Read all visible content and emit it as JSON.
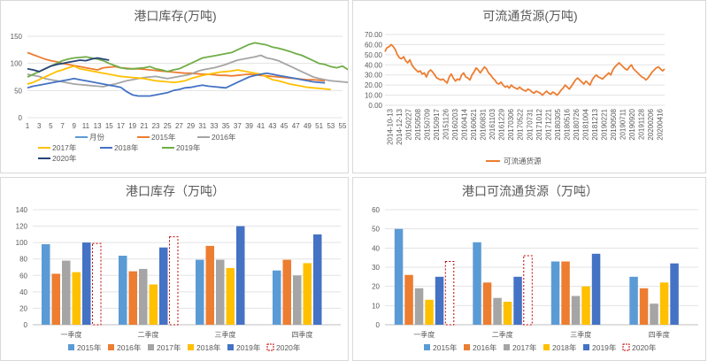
{
  "chart_data": [
    {
      "type": "line",
      "title": "港口库存(万吨)",
      "xlabel": "",
      "ylabel": "",
      "ylim": [
        0,
        150
      ],
      "yticks": [
        0,
        50,
        100,
        150
      ],
      "xticks": [
        1,
        3,
        5,
        7,
        9,
        11,
        13,
        15,
        17,
        19,
        21,
        23,
        25,
        27,
        29,
        31,
        33,
        35,
        37,
        39,
        41,
        43,
        45,
        47,
        49,
        51,
        53,
        55
      ],
      "xlim": [
        1,
        55
      ],
      "grid": true,
      "legend": "bottom",
      "legend_entries": [
        "月份",
        "2015年",
        "2016年",
        "2017年",
        "2018年",
        "2019年",
        "2020年"
      ],
      "series": [
        {
          "name": "2015年",
          "color": "#ed7d31",
          "start": 1,
          "values": [
            120,
            116,
            112,
            108,
            105,
            103,
            100,
            98,
            96,
            94,
            92,
            90,
            88,
            92,
            93,
            94,
            92,
            91,
            90,
            90,
            89,
            88,
            87,
            86,
            85,
            84,
            83,
            82,
            82,
            81,
            80,
            80,
            79,
            78,
            78,
            77,
            78,
            79,
            80,
            79,
            78,
            77,
            76,
            75,
            74,
            73,
            72,
            71,
            70,
            70,
            69,
            68
          ]
        },
        {
          "name": "2016年",
          "color": "#a5a5a5",
          "start": 1,
          "values": [
            80,
            78,
            76,
            72,
            70,
            68,
            66,
            64,
            62,
            61,
            60,
            59,
            58,
            57,
            60,
            62,
            65,
            68,
            70,
            72,
            74,
            75,
            76,
            74,
            72,
            74,
            76,
            78,
            80,
            85,
            88,
            90,
            92,
            95,
            98,
            102,
            106,
            108,
            110,
            112,
            115,
            110,
            108,
            105,
            100,
            95,
            90,
            85,
            80,
            75,
            72,
            70,
            68,
            67,
            66,
            65,
            63
          ]
        },
        {
          "name": "2017年",
          "color": "#ffc000",
          "start": 1,
          "values": [
            62,
            65,
            70,
            75,
            80,
            85,
            88,
            92,
            95,
            90,
            88,
            86,
            84,
            82,
            80,
            78,
            76,
            75,
            74,
            73,
            72,
            70,
            68,
            67,
            66,
            65,
            66,
            68,
            72,
            75,
            78,
            80,
            82,
            84,
            85,
            86,
            88,
            86,
            84,
            82,
            80,
            75,
            70,
            68,
            65,
            62,
            60,
            58,
            56,
            55,
            54,
            53,
            52
          ]
        },
        {
          "name": "2018年",
          "color": "#4472c4",
          "start": 1,
          "values": [
            55,
            58,
            60,
            62,
            64,
            66,
            68,
            70,
            72,
            70,
            68,
            66,
            64,
            62,
            60,
            58,
            56,
            48,
            42,
            40,
            40,
            40,
            42,
            44,
            46,
            50,
            52,
            55,
            56,
            58,
            60,
            58,
            57,
            56,
            55,
            60,
            65,
            70,
            75,
            78,
            80,
            82,
            80,
            78,
            76,
            74,
            72,
            70,
            68,
            66,
            65,
            64
          ]
        },
        {
          "name": "2019年",
          "color": "#70ad47",
          "start": 1,
          "values": [
            75,
            80,
            85,
            90,
            95,
            100,
            105,
            108,
            110,
            111,
            112,
            110,
            108,
            105,
            100,
            96,
            92,
            90,
            90,
            91,
            92,
            94,
            90,
            88,
            85,
            88,
            90,
            95,
            100,
            105,
            110,
            112,
            114,
            116,
            118,
            120,
            125,
            130,
            135,
            138,
            136,
            134,
            130,
            128,
            125,
            122,
            118,
            115,
            110,
            105,
            100,
            98,
            94,
            92,
            95,
            88
          ]
        },
        {
          "name": "2020年",
          "color": "#264478",
          "start": 1,
          "values": [
            90,
            88,
            85,
            90,
            95,
            98,
            100,
            102,
            104,
            106,
            105,
            108,
            110,
            108,
            106
          ]
        }
      ]
    },
    {
      "type": "line",
      "title": "可流通货源(万吨)",
      "xlabel": "",
      "ylabel": "",
      "ylim": [
        0,
        70
      ],
      "yticks": [
        "0.00",
        "10.00",
        "20.00",
        "30.00",
        "40.00",
        "50.00",
        "60.00",
        "70.00"
      ],
      "xticks": [
        "2014-10-13",
        "2014-12-13",
        "20150227",
        "20150508",
        "20150709",
        "20150917",
        "20151126",
        "20160203",
        "20160414",
        "20160621",
        "20160831",
        "20161103",
        "20161229",
        "20170306",
        "20170522",
        "20170731",
        "20171012",
        "20171221",
        "20180305",
        "20180516",
        "20180726",
        "20181004",
        "20181213",
        "20190221",
        "20190508",
        "20190711",
        "20190920",
        "20191128",
        "20200206",
        "20200416"
      ],
      "grid": true,
      "legend": "bottom",
      "series": [
        {
          "name": "可流通货源",
          "color": "#ed7d31",
          "values": [
            53,
            57,
            58,
            60,
            58,
            55,
            50,
            47,
            46,
            48,
            44,
            42,
            45,
            40,
            37,
            35,
            33,
            34,
            31,
            32,
            28,
            33,
            35,
            33,
            30,
            27,
            26,
            25,
            26,
            24,
            22,
            28,
            31,
            27,
            24,
            26,
            25,
            30,
            32,
            28,
            27,
            25,
            30,
            33,
            37,
            35,
            32,
            35,
            38,
            36,
            32,
            30,
            27,
            25,
            22,
            21,
            23,
            20,
            18,
            19,
            17,
            20,
            18,
            17,
            16,
            18,
            16,
            15,
            14,
            16,
            15,
            13,
            12,
            14,
            13,
            12,
            10,
            12,
            14,
            12,
            11,
            13,
            12,
            10,
            12,
            15,
            17,
            20,
            18,
            16,
            19,
            22,
            25,
            27,
            25,
            23,
            21,
            24,
            22,
            20,
            25,
            28,
            30,
            28,
            27,
            26,
            28,
            30,
            32,
            30,
            35,
            38,
            40,
            42,
            40,
            38,
            36,
            35,
            38,
            40,
            36,
            34,
            32,
            30,
            28,
            27,
            25,
            27,
            30,
            33,
            35,
            37,
            38,
            36,
            34,
            36
          ]
        }
      ]
    },
    {
      "type": "bar",
      "title": "港口库存（万吨）",
      "xlabel": "",
      "ylabel": "",
      "ylim": [
        0,
        140
      ],
      "yticks": [
        0,
        20,
        40,
        60,
        80,
        100,
        120,
        140
      ],
      "grid": true,
      "legend": "bottom",
      "categories": [
        "一季度",
        "二季度",
        "三季度",
        "四季度"
      ],
      "series": [
        {
          "name": "2015年",
          "color": "#5b9bd5",
          "values": [
            98,
            84,
            79,
            66
          ]
        },
        {
          "name": "2016年",
          "color": "#ed7d31",
          "values": [
            62,
            65,
            96,
            79
          ]
        },
        {
          "name": "2017年",
          "color": "#a5a5a5",
          "values": [
            78,
            68,
            79,
            60
          ]
        },
        {
          "name": "2018年",
          "color": "#ffc000",
          "values": [
            64,
            49,
            69,
            75
          ]
        },
        {
          "name": "2019年",
          "color": "#4472c4",
          "values": [
            100,
            94,
            120,
            110
          ]
        },
        {
          "name": "2020年",
          "color": "#c00000",
          "dashed": true,
          "values": [
            99,
            107,
            null,
            null
          ]
        }
      ]
    },
    {
      "type": "bar",
      "title": "港口可流通货源（万吨）",
      "xlabel": "",
      "ylabel": "",
      "ylim": [
        0,
        60
      ],
      "yticks": [
        0,
        10,
        20,
        30,
        40,
        50,
        60
      ],
      "grid": true,
      "legend": "bottom",
      "categories": [
        "一季度",
        "二季度",
        "三季度",
        "四季度"
      ],
      "series": [
        {
          "name": "2015年",
          "color": "#5b9bd5",
          "values": [
            50,
            43,
            33,
            25
          ]
        },
        {
          "name": "2016年",
          "color": "#ed7d31",
          "values": [
            26,
            22,
            33,
            19
          ]
        },
        {
          "name": "2017年",
          "color": "#a5a5a5",
          "values": [
            19,
            14,
            15,
            11
          ]
        },
        {
          "name": "2018年",
          "color": "#ffc000",
          "values": [
            13,
            12,
            20,
            22
          ]
        },
        {
          "name": "2019年",
          "color": "#4472c4",
          "values": [
            25,
            25,
            37,
            32
          ]
        },
        {
          "name": "2020年",
          "color": "#c00000",
          "dashed": true,
          "values": [
            33,
            36,
            null,
            null
          ]
        }
      ]
    }
  ]
}
